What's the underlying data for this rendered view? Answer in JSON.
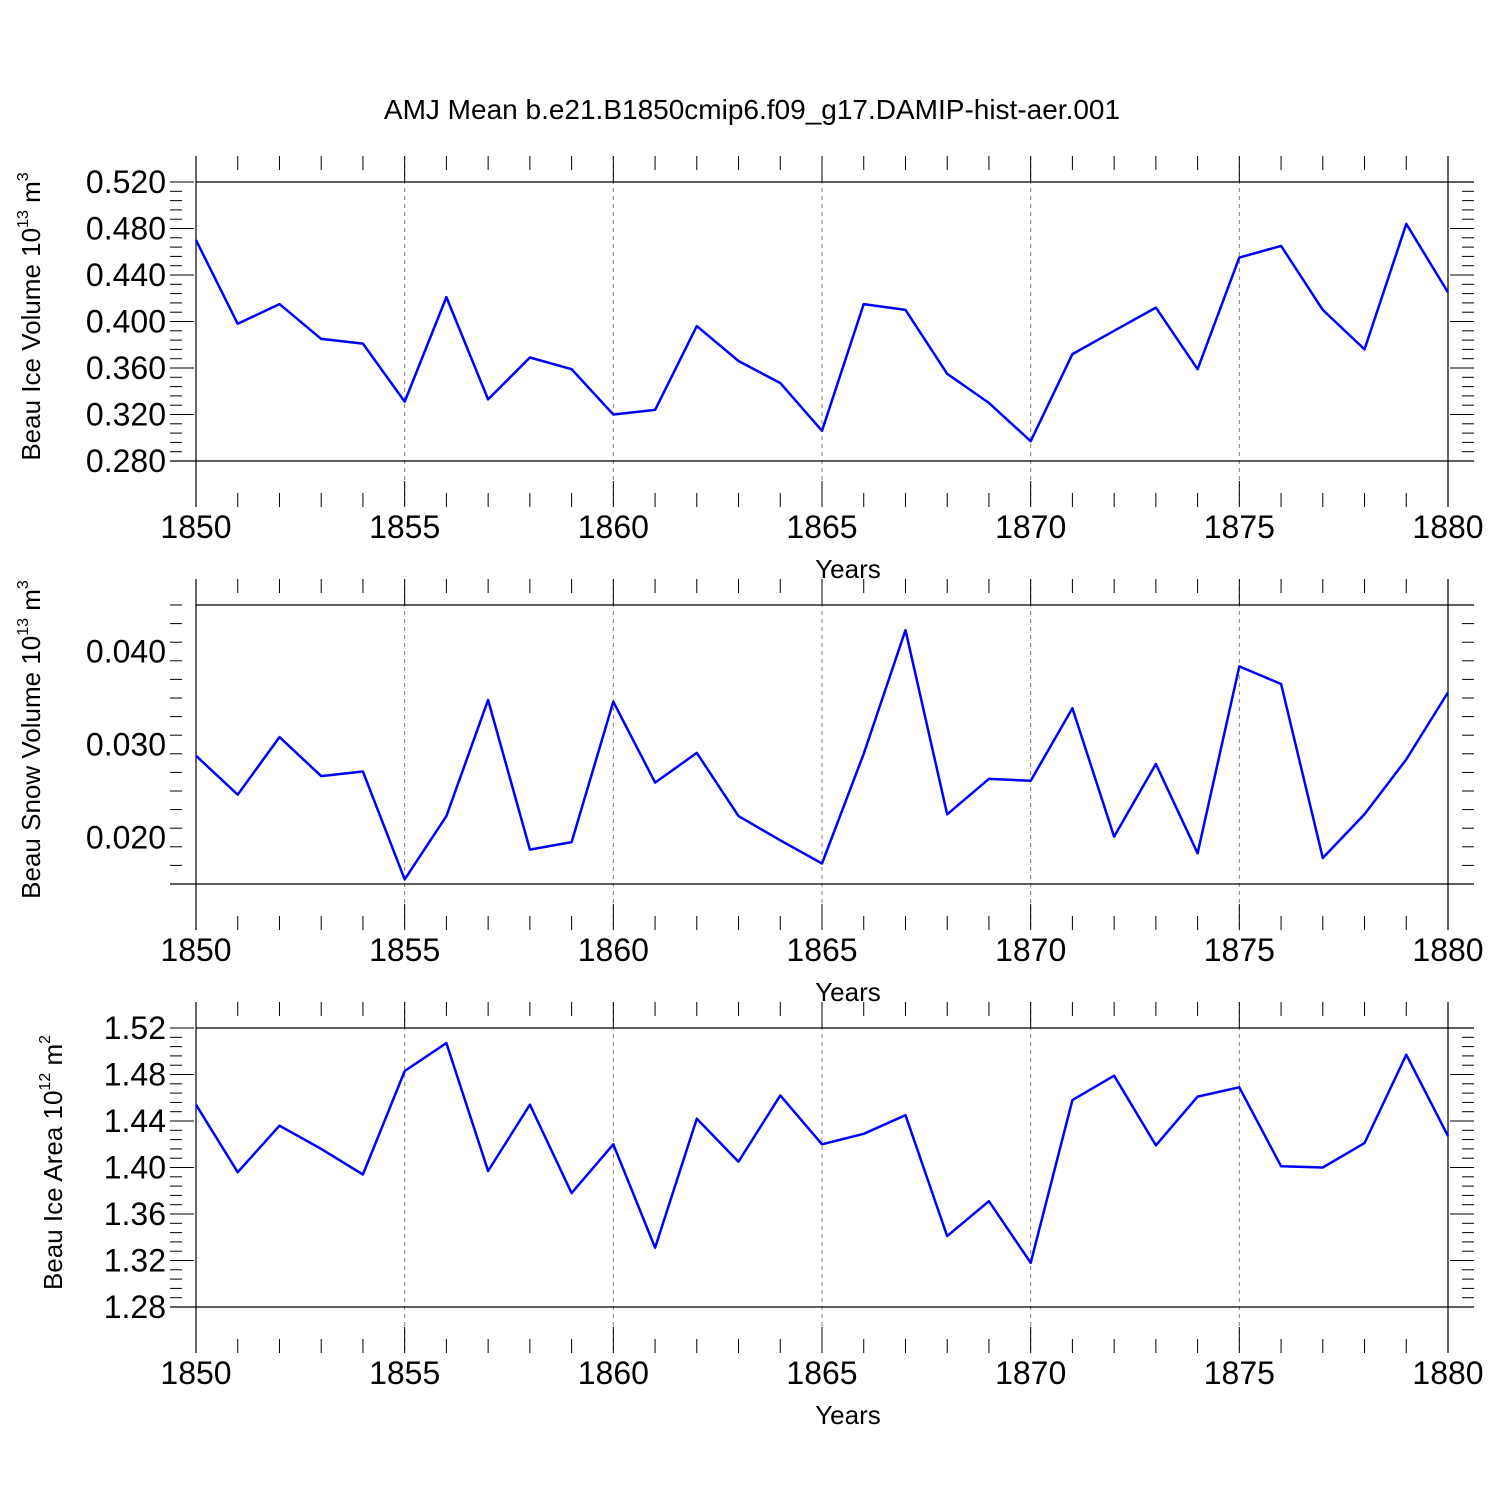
{
  "title": "AMJ Mean b.e21.B1850cmip6.f09_g17.DAMIP-hist-aer.001",
  "colors": {
    "line": "#0000ff",
    "axis": "#000000",
    "grid": "#808080"
  },
  "chart_data": [
    {
      "type": "line",
      "ylabel": "Beau Ice Volume 10",
      "ylabel_exp": "13",
      "ylabel_unit": " m",
      "ylabel_unit_exp": "3",
      "xlabel": "Years",
      "xlim": [
        1850,
        1880
      ],
      "ylim": [
        0.28,
        0.52
      ],
      "yticks": [
        "0.280",
        "0.320",
        "0.360",
        "0.400",
        "0.440",
        "0.480",
        "0.520"
      ],
      "xticks": [
        "1850",
        "1855",
        "1860",
        "1865",
        "1870",
        "1875",
        "1880"
      ],
      "grid": "vertical dashed at major x ticks",
      "x": [
        1850,
        1851,
        1852,
        1853,
        1854,
        1855,
        1856,
        1857,
        1858,
        1859,
        1860,
        1861,
        1862,
        1863,
        1864,
        1865,
        1866,
        1867,
        1868,
        1869,
        1870,
        1871,
        1872,
        1873,
        1874,
        1875,
        1876,
        1877,
        1878,
        1879,
        1880
      ],
      "series": [
        {
          "values": [
            0.47,
            0.398,
            0.415,
            0.385,
            0.381,
            0.331,
            0.421,
            0.333,
            0.369,
            0.359,
            0.32,
            0.324,
            0.396,
            0.366,
            0.347,
            0.306,
            0.415,
            0.41,
            0.355,
            0.33,
            0.297,
            0.372,
            0.392,
            0.412,
            0.359,
            0.455,
            0.465,
            0.41,
            0.376,
            0.484,
            0.425
          ]
        }
      ]
    },
    {
      "type": "line",
      "ylabel": "Beau Snow Volume 10",
      "ylabel_exp": "13",
      "ylabel_unit": " m",
      "ylabel_unit_exp": "3",
      "xlabel": "Years",
      "xlim": [
        1850,
        1880
      ],
      "ylim": [
        0.015,
        0.045
      ],
      "yticks": [
        "0.020",
        "0.030",
        "0.040"
      ],
      "ytick_values": [
        0.02,
        0.03,
        0.04
      ],
      "xticks": [
        "1850",
        "1855",
        "1860",
        "1865",
        "1870",
        "1875",
        "1880"
      ],
      "grid": "vertical dashed at major x ticks",
      "x": [
        1850,
        1851,
        1852,
        1853,
        1854,
        1855,
        1856,
        1857,
        1858,
        1859,
        1860,
        1861,
        1862,
        1863,
        1864,
        1865,
        1866,
        1867,
        1868,
        1869,
        1870,
        1871,
        1872,
        1873,
        1874,
        1875,
        1876,
        1877,
        1878,
        1879,
        1880
      ],
      "series": [
        {
          "values": [
            0.0288,
            0.0246,
            0.0308,
            0.0266,
            0.0271,
            0.0155,
            0.0223,
            0.0348,
            0.0187,
            0.0195,
            0.0346,
            0.0259,
            0.0291,
            0.0223,
            0.0197,
            0.0172,
            0.029,
            0.0423,
            0.0225,
            0.0263,
            0.0261,
            0.0339,
            0.0201,
            0.0279,
            0.0183,
            0.0384,
            0.0365,
            0.0178,
            0.0225,
            0.0284,
            0.0356
          ]
        }
      ]
    },
    {
      "type": "line",
      "ylabel": "Beau Ice Area 10",
      "ylabel_exp": "12",
      "ylabel_unit": " m",
      "ylabel_unit_exp": "2",
      "xlabel": "Years",
      "xlim": [
        1850,
        1880
      ],
      "ylim": [
        1.28,
        1.52
      ],
      "yticks": [
        "1.28",
        "1.32",
        "1.36",
        "1.40",
        "1.44",
        "1.48",
        "1.52"
      ],
      "xticks": [
        "1850",
        "1855",
        "1860",
        "1865",
        "1870",
        "1875",
        "1880"
      ],
      "grid": "vertical dashed at major x ticks",
      "x": [
        1850,
        1851,
        1852,
        1853,
        1854,
        1855,
        1856,
        1857,
        1858,
        1859,
        1860,
        1861,
        1862,
        1863,
        1864,
        1865,
        1866,
        1867,
        1868,
        1869,
        1870,
        1871,
        1872,
        1873,
        1874,
        1875,
        1876,
        1877,
        1878,
        1879,
        1880
      ],
      "series": [
        {
          "values": [
            1.454,
            1.396,
            1.436,
            1.416,
            1.394,
            1.483,
            1.507,
            1.397,
            1.454,
            1.378,
            1.42,
            1.331,
            1.442,
            1.405,
            1.462,
            1.42,
            1.429,
            1.445,
            1.341,
            1.371,
            1.318,
            1.458,
            1.479,
            1.419,
            1.461,
            1.469,
            1.401,
            1.4,
            1.421,
            1.497,
            1.427
          ]
        }
      ]
    }
  ]
}
